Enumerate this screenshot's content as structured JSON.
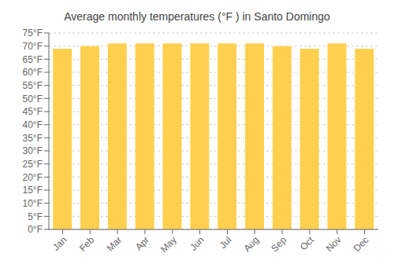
{
  "chart_data": {
    "type": "bar",
    "title": "Average monthly temperatures (°F ) in Santo Domingo",
    "categories": [
      "Jan",
      "Feb",
      "Mar",
      "Apr",
      "May",
      "Jun",
      "Jul",
      "Aug",
      "Sep",
      "Oct",
      "Nov",
      "Dec"
    ],
    "values": [
      69,
      70,
      71,
      71,
      71,
      71,
      71,
      71,
      70,
      69,
      71,
      69
    ],
    "color": "#FFD050",
    "ylim": [
      0,
      75
    ],
    "yticks": [
      {
        "value": 0,
        "label": "0°F"
      },
      {
        "value": 5,
        "label": "5°F"
      },
      {
        "value": 10,
        "label": "10°F"
      },
      {
        "value": 15,
        "label": "15°F"
      },
      {
        "value": 20,
        "label": "20°F"
      },
      {
        "value": 25,
        "label": "25°F"
      },
      {
        "value": 30,
        "label": "30°F"
      },
      {
        "value": 35,
        "label": "35°F"
      },
      {
        "value": 40,
        "label": "40°F"
      },
      {
        "value": 45,
        "label": "45°F"
      },
      {
        "value": 50,
        "label": "50°F"
      },
      {
        "value": 55,
        "label": "55°F"
      },
      {
        "value": 60,
        "label": "60°F"
      },
      {
        "value": 65,
        "label": "65°F"
      },
      {
        "value": 70,
        "label": "70°F"
      },
      {
        "value": 75,
        "label": "75°F"
      }
    ],
    "grid": true
  }
}
